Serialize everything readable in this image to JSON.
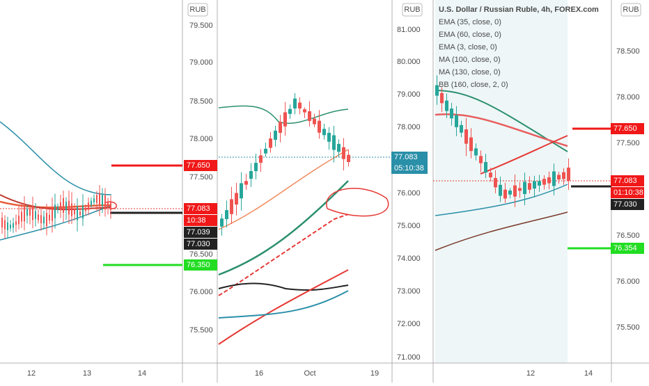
{
  "panels": [
    {
      "currency": "RUB",
      "price_axis": [
        "79.500",
        "79.000",
        "78.500",
        "78.000",
        "77.500",
        "76.500",
        "76.000",
        "75.500"
      ],
      "price_tags": [
        "77.650",
        "77.083",
        "10:38",
        "77.039",
        "77.030",
        "76.350"
      ],
      "time_axis": [
        "12",
        "13",
        "14"
      ]
    },
    {
      "currency": "RUB",
      "price_axis": [
        "81.000",
        "80.000",
        "79.000",
        "78.000",
        "76.000",
        "75.000",
        "74.000",
        "73.000",
        "72.000",
        "71.000"
      ],
      "price_tags": [
        "77.083",
        "05:10:38"
      ],
      "time_axis": [
        "16",
        "Oct",
        "19"
      ]
    },
    {
      "currency": "RUB",
      "legend": [
        "U.S. Dollar / Russian Ruble, 4h, FOREX.com",
        "EMA (35, close, 0)",
        "EMA (60, close, 0)",
        "EMA (3, close, 0)",
        "MA (100, close, 0)",
        "MA (130, close, 0)",
        "BB (160, close, 2, 0)"
      ],
      "price_axis": [
        "78.500",
        "78.000",
        "77.500",
        "76.500",
        "76.000",
        "75.500"
      ],
      "price_tags": [
        "77.650",
        "77.083",
        "01:10:38",
        "77.030",
        "76.354"
      ],
      "time_axis": [
        "12",
        "14"
      ]
    }
  ]
}
